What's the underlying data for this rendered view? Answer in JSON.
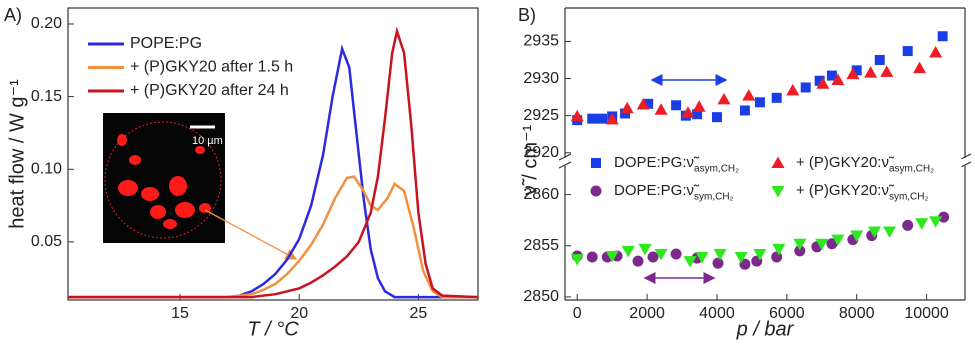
{
  "chart_data": [
    {
      "type": "line",
      "panel_label": "A)",
      "xlabel": "T / °C",
      "ylabel": "heat flow / W g⁻¹",
      "inset_label": "10 µm",
      "xlim": [
        10.3,
        27.5
      ],
      "xticks": [
        15,
        20,
        25
      ],
      "ylim": [
        0.01,
        0.211
      ],
      "yticks": [
        0.05,
        {
          "value": 0.1,
          "label": "0.10"
        },
        0.15,
        {
          "value": 0.2,
          "label": "0.20"
        }
      ],
      "series": [
        {
          "name": "POPE:PG",
          "color": "#2a2ae0",
          "x": [
            10.3,
            17,
            17.5,
            18,
            18.5,
            19,
            19.5,
            20,
            20.5,
            21,
            21.4,
            21.8,
            22.1,
            22.4,
            22.7,
            23,
            23.3,
            23.6,
            24,
            27.5
          ],
          "values": [
            0.012,
            0.012,
            0.013,
            0.016,
            0.021,
            0.028,
            0.038,
            0.052,
            0.075,
            0.11,
            0.15,
            0.183,
            0.17,
            0.125,
            0.08,
            0.045,
            0.025,
            0.016,
            0.012,
            0.012
          ]
        },
        {
          "name": "+ (P)GKY20 after 1.5 h",
          "color": "#f29040",
          "x": [
            10.3,
            17,
            18,
            18.5,
            19,
            19.5,
            20,
            20.5,
            21,
            21.5,
            22,
            22.3,
            22.7,
            23,
            23.3,
            23.7,
            24,
            24.4,
            24.8,
            25.2,
            25.6,
            26,
            27.5
          ],
          "values": [
            0.012,
            0.012,
            0.014,
            0.017,
            0.021,
            0.028,
            0.037,
            0.048,
            0.062,
            0.08,
            0.094,
            0.095,
            0.085,
            0.075,
            0.072,
            0.08,
            0.09,
            0.085,
            0.06,
            0.03,
            0.016,
            0.012,
            0.012
          ]
        },
        {
          "name": "+ (P)GKY20 after 24 h",
          "color": "#c8141e",
          "x": [
            10.3,
            18,
            19,
            20,
            20.5,
            21,
            21.5,
            22,
            22.5,
            23,
            23.3,
            23.6,
            23.9,
            24.1,
            24.4,
            24.7,
            25,
            25.3,
            25.6,
            26,
            27.5
          ],
          "values": [
            0.012,
            0.012,
            0.014,
            0.018,
            0.022,
            0.027,
            0.033,
            0.04,
            0.05,
            0.07,
            0.095,
            0.135,
            0.18,
            0.195,
            0.18,
            0.13,
            0.07,
            0.035,
            0.018,
            0.013,
            0.012
          ]
        }
      ]
    },
    {
      "type": "scatter",
      "panel_label": "B)",
      "xlabel": "p / bar",
      "ylabel": "ν̃ / cm⁻¹",
      "xlim": [
        -350,
        11100
      ],
      "xticks": [
        0,
        2000,
        4000,
        6000,
        8000,
        10000
      ],
      "segments": [
        {
          "ylim": [
            2919.3,
            2939.5
          ],
          "yticks": [
            2920,
            2925,
            2930,
            2935
          ]
        },
        {
          "ylim": [
            2849.7,
            2862.8
          ],
          "yticks": [
            2850,
            2855,
            2860
          ]
        }
      ],
      "series": [
        {
          "name": "DOPE:PG:ν̃",
          "name_sub": "asym,CH₂",
          "marker": "square",
          "color": "#1a3ee6",
          "segment": 0,
          "x": [
            0,
            430,
            710,
            1000,
            1370,
            2030,
            2830,
            3110,
            3430,
            4000,
            4800,
            5230,
            5710,
            6540,
            6940,
            7290,
            8000,
            8660,
            9460,
            10460
          ],
          "values": [
            2924.4,
            2924.6,
            2924.6,
            2924.9,
            2925.3,
            2926.6,
            2926.4,
            2925.0,
            2925.2,
            2924.8,
            2925.7,
            2926.8,
            2927.4,
            2928.8,
            2929.7,
            2930.4,
            2931.1,
            2932.5,
            2933.7,
            2935.7
          ]
        },
        {
          "name": "+ (P)GKY20:ν̃",
          "name_sub": "asym,CH₂",
          "marker": "triangle-up",
          "color": "#ee1c24",
          "segment": 0,
          "x": [
            0,
            1000,
            1430,
            1890,
            2400,
            3170,
            3490,
            4200,
            4910,
            6170,
            7030,
            7460,
            7890,
            8400,
            8860,
            9800,
            10260
          ],
          "values": [
            2924.9,
            2924.5,
            2926.0,
            2926.5,
            2925.8,
            2925.4,
            2926.2,
            2927.2,
            2927.7,
            2928.4,
            2929.3,
            2929.8,
            2930.6,
            2930.8,
            2930.9,
            2931.4,
            2933.5
          ]
        },
        {
          "name": "DOPE:PG:ν̃",
          "name_sub": "sym,CH₂",
          "marker": "circle",
          "color": "#7b2a8c",
          "segment": 1,
          "x": [
            0,
            430,
            860,
            1140,
            1740,
            2170,
            2830,
            3430,
            4030,
            4800,
            5140,
            5710,
            6370,
            6860,
            7290,
            7890,
            8430,
            9460,
            10490
          ],
          "values": [
            2854.0,
            2853.9,
            2853.9,
            2854.0,
            2853.5,
            2853.9,
            2854.2,
            2853.8,
            2853.3,
            2853.2,
            2853.5,
            2853.9,
            2854.5,
            2854.9,
            2855.2,
            2855.6,
            2856.0,
            2857.0,
            2857.8
          ]
        },
        {
          "name": "+ (P)GKY20:ν̃",
          "name_sub": "sym,CH₂",
          "marker": "triangle-down",
          "color": "#2ee81e",
          "segment": 1,
          "x": [
            0,
            1000,
            1460,
            1940,
            2400,
            3230,
            3570,
            4090,
            4690,
            5230,
            5770,
            6370,
            7000,
            7460,
            8000,
            8510,
            8940,
            9860,
            10260
          ],
          "values": [
            2853.7,
            2854.0,
            2854.5,
            2854.7,
            2854.2,
            2853.5,
            2853.9,
            2854.2,
            2853.9,
            2854.2,
            2854.7,
            2855.2,
            2855.2,
            2855.6,
            2856.0,
            2856.4,
            2856.4,
            2857.2,
            2857.4
          ]
        }
      ]
    }
  ]
}
